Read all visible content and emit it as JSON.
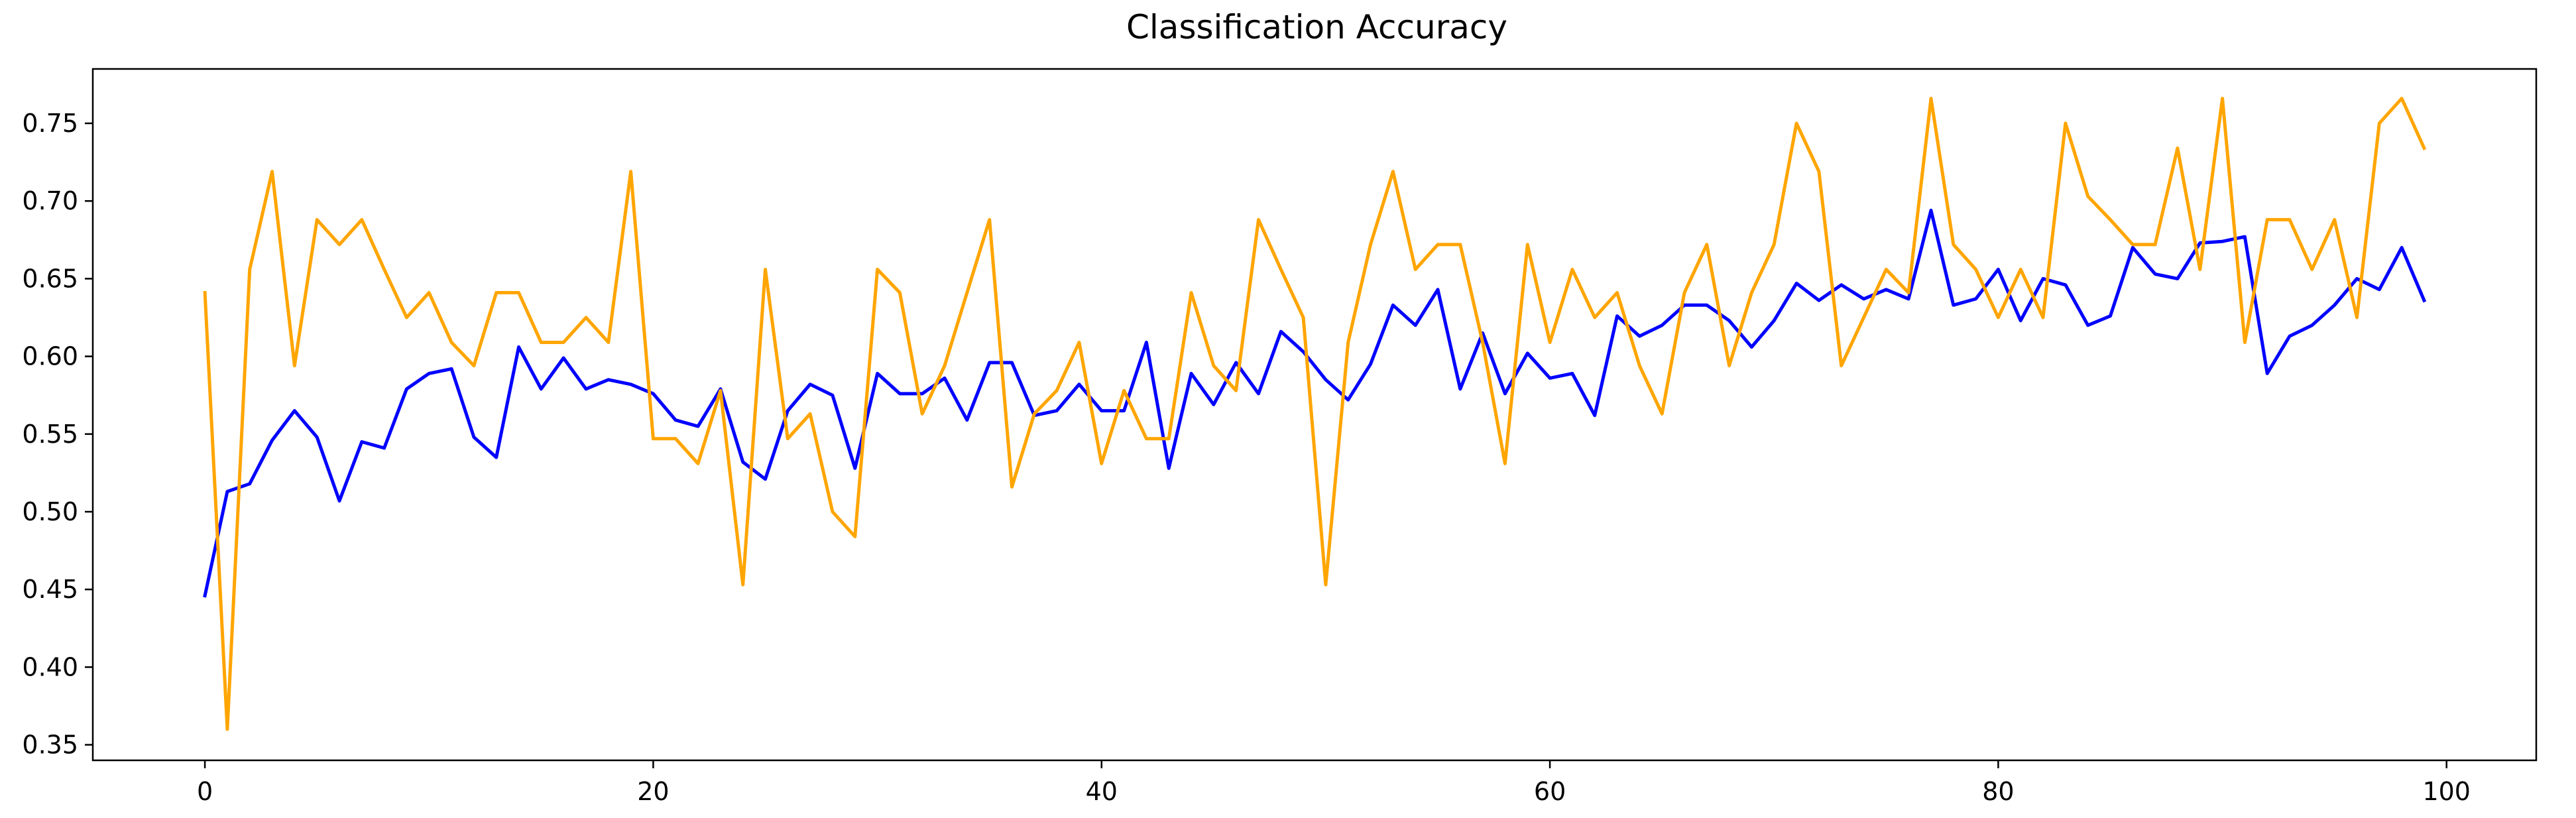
{
  "chart_data": {
    "type": "line",
    "title": "Classification Accuracy",
    "xlabel": "",
    "ylabel": "",
    "xlim": [
      -5,
      104
    ],
    "ylim": [
      0.34,
      0.785
    ],
    "xticks": [
      0,
      20,
      40,
      60,
      80,
      100
    ],
    "xtick_labels": [
      "0",
      "20",
      "40",
      "60",
      "80",
      "100"
    ],
    "yticks": [
      0.35,
      0.4,
      0.45,
      0.5,
      0.55,
      0.6,
      0.65,
      0.7,
      0.75
    ],
    "ytick_labels": [
      "0.35",
      "0.40",
      "0.45",
      "0.50",
      "0.55",
      "0.60",
      "0.65",
      "0.70",
      "0.75"
    ],
    "grid": false,
    "series": [
      {
        "color": "#0000ff",
        "x": [
          0,
          1,
          2,
          3,
          4,
          5,
          6,
          7,
          8,
          9,
          10,
          11,
          12,
          13,
          14,
          15,
          16,
          17,
          18,
          19,
          20,
          21,
          22,
          23,
          24,
          25,
          26,
          27,
          28,
          29,
          30,
          31,
          32,
          33,
          34,
          35,
          36,
          37,
          38,
          39,
          40,
          41,
          42,
          43,
          44,
          45,
          46,
          47,
          48,
          49,
          50,
          51,
          52,
          53,
          54,
          55,
          56,
          57,
          58,
          59,
          60,
          61,
          62,
          63,
          64,
          65,
          66,
          67,
          68,
          69,
          70,
          71,
          72,
          73,
          74,
          75,
          76,
          77,
          78,
          79,
          80,
          81,
          82,
          83,
          84,
          85,
          86,
          87,
          88,
          89,
          90,
          91,
          92,
          93,
          94,
          95,
          96,
          97,
          98,
          99
        ],
        "y": [
          0.446,
          0.513,
          0.518,
          0.546,
          0.565,
          0.548,
          0.507,
          0.545,
          0.541,
          0.579,
          0.589,
          0.592,
          0.548,
          0.535,
          0.606,
          0.579,
          0.599,
          0.579,
          0.585,
          0.582,
          0.576,
          0.559,
          0.555,
          0.579,
          0.532,
          0.521,
          0.565,
          0.582,
          0.575,
          0.528,
          0.589,
          0.576,
          0.576,
          0.586,
          0.559,
          0.596,
          0.596,
          0.562,
          0.565,
          0.582,
          0.565,
          0.565,
          0.609,
          0.528,
          0.589,
          0.569,
          0.596,
          0.576,
          0.616,
          0.603,
          0.585,
          0.572,
          0.595,
          0.633,
          0.62,
          0.643,
          0.579,
          0.615,
          0.576,
          0.602,
          0.586,
          0.589,
          0.562,
          0.626,
          0.613,
          0.62,
          0.633,
          0.633,
          0.623,
          0.606,
          0.623,
          0.647,
          0.636,
          0.646,
          0.637,
          0.643,
          0.637,
          0.694,
          0.633,
          0.637,
          0.656,
          0.623,
          0.65,
          0.646,
          0.62,
          0.626,
          0.67,
          0.653,
          0.65,
          0.673,
          0.674,
          0.677,
          0.589,
          0.613,
          0.62,
          0.633,
          0.65,
          0.643,
          0.67,
          0.636
        ]
      },
      {
        "color": "#ffa500",
        "x": [
          0,
          1,
          2,
          3,
          4,
          5,
          6,
          7,
          8,
          9,
          10,
          11,
          12,
          13,
          14,
          15,
          16,
          17,
          18,
          19,
          20,
          21,
          22,
          23,
          24,
          25,
          26,
          27,
          28,
          29,
          30,
          31,
          32,
          33,
          34,
          35,
          36,
          37,
          38,
          39,
          40,
          41,
          42,
          43,
          44,
          45,
          46,
          47,
          48,
          49,
          50,
          51,
          52,
          53,
          54,
          55,
          56,
          57,
          58,
          59,
          60,
          61,
          62,
          63,
          64,
          65,
          66,
          67,
          68,
          69,
          70,
          71,
          72,
          73,
          74,
          75,
          76,
          77,
          78,
          79,
          80,
          81,
          82,
          83,
          84,
          85,
          86,
          87,
          88,
          89,
          90,
          91,
          92,
          93,
          94,
          95,
          96,
          97,
          98,
          99
        ],
        "y": [
          0.641,
          0.36,
          0.656,
          0.719,
          0.594,
          0.688,
          0.672,
          0.688,
          0.656,
          0.625,
          0.641,
          0.609,
          0.594,
          0.641,
          0.641,
          0.609,
          0.609,
          0.625,
          0.609,
          0.719,
          0.547,
          0.547,
          0.531,
          0.578,
          0.453,
          0.656,
          0.547,
          0.563,
          0.5,
          0.484,
          0.656,
          0.641,
          0.563,
          0.594,
          0.641,
          0.688,
          0.516,
          0.563,
          0.578,
          0.609,
          0.531,
          0.578,
          0.547,
          0.547,
          0.641,
          0.594,
          0.578,
          0.688,
          0.656,
          0.625,
          0.453,
          0.609,
          0.672,
          0.719,
          0.656,
          0.672,
          0.672,
          0.609,
          0.531,
          0.672,
          0.609,
          0.656,
          0.625,
          0.641,
          0.594,
          0.563,
          0.641,
          0.672,
          0.594,
          0.641,
          0.672,
          0.75,
          0.719,
          0.594,
          0.625,
          0.656,
          0.641,
          0.766,
          0.672,
          0.656,
          0.625,
          0.656,
          0.625,
          0.75,
          0.703,
          0.688,
          0.672,
          0.672,
          0.734,
          0.656,
          0.766,
          0.609,
          0.688,
          0.688,
          0.656,
          0.688,
          0.625,
          0.75,
          0.766,
          0.734
        ]
      }
    ]
  }
}
